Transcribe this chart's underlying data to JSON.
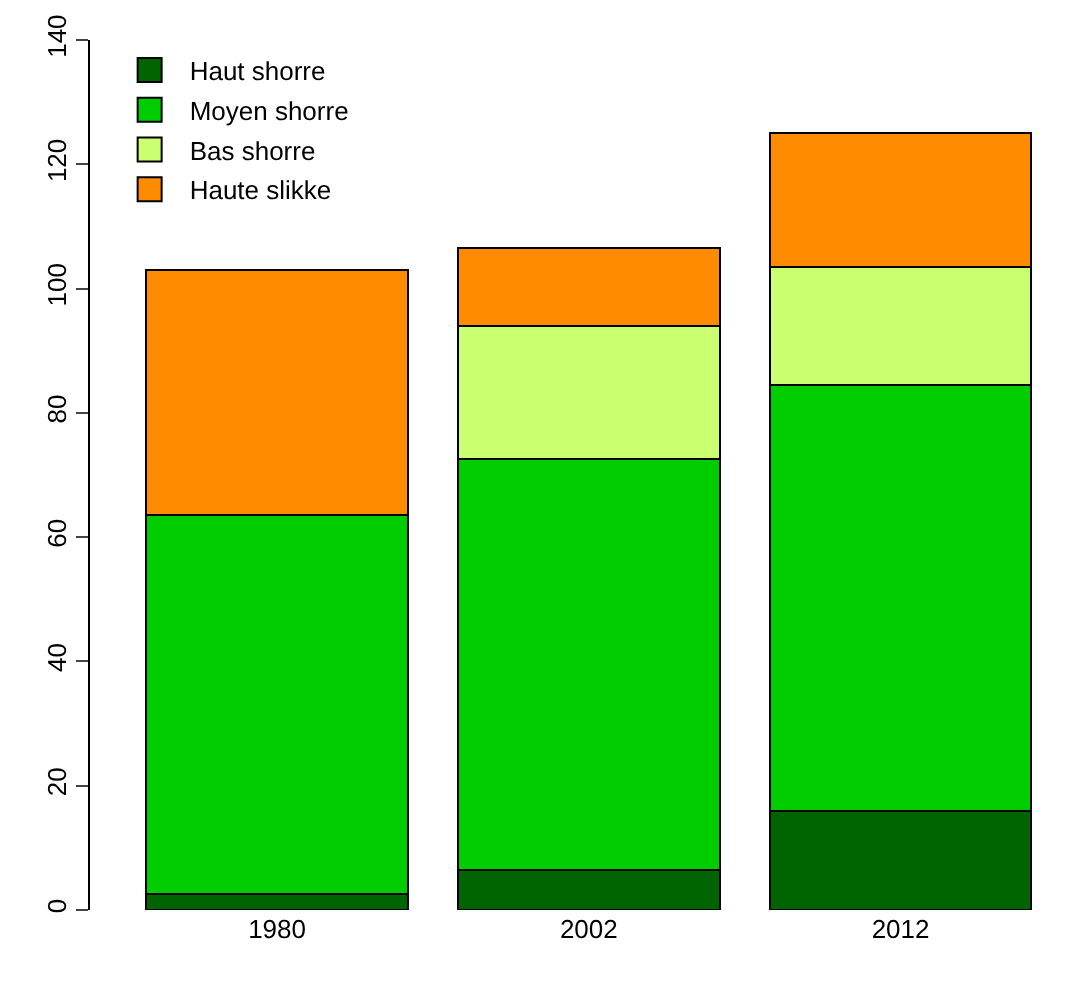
{
  "chart_data": {
    "type": "bar",
    "stacked": true,
    "categories": [
      "1980",
      "2002",
      "2012"
    ],
    "series": [
      {
        "name": "Haut shorre",
        "color": "#006400",
        "values": [
          2.5,
          6.5,
          16
        ]
      },
      {
        "name": "Moyen shorre",
        "color": "#00cd00",
        "values": [
          61,
          66,
          68.5
        ]
      },
      {
        "name": "Bas shorre",
        "color": "#caff70",
        "values": [
          0,
          21.5,
          19
        ]
      },
      {
        "name": "Haute slikke",
        "color": "#ff8c00",
        "values": [
          39.5,
          12.5,
          21.5
        ]
      }
    ],
    "ylim": [
      0,
      140
    ],
    "yticks": [
      0,
      20,
      40,
      60,
      80,
      100,
      120,
      140
    ],
    "legend": "top left"
  }
}
